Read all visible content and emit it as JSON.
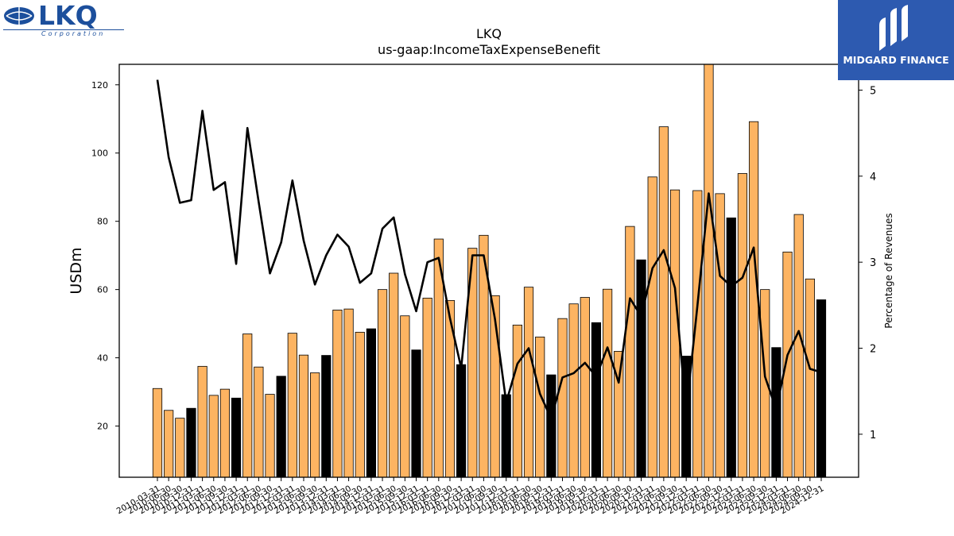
{
  "logos": {
    "left": {
      "name": "LKQ",
      "subtitle": "Corporation"
    },
    "right": {
      "name": "MIDGARD FINANCE"
    }
  },
  "chart_data": {
    "type": "bar",
    "title": "LKQ",
    "subtitle": "us-gaap:IncomeTaxExpenseBenefit",
    "ylabel": "USDm",
    "y2label": "Percentage of Revenues",
    "ylim": [
      5,
      126
    ],
    "y2lim": [
      0.5,
      5.3
    ],
    "yticks": [
      20,
      40,
      60,
      80,
      100,
      120
    ],
    "y2ticks": [
      1,
      2,
      3,
      4,
      5
    ],
    "colors": {
      "bar": "#fdb462",
      "bar_q4": "#000000",
      "line": "#000000"
    },
    "categories": [
      "2010-03-31",
      "2010-06-30",
      "2010-09-30",
      "2010-12-31",
      "2011-03-31",
      "2011-06-30",
      "2011-09-30",
      "2011-12-31",
      "2012-03-31",
      "2012-06-30",
      "2012-09-30",
      "2012-12-31",
      "2013-03-31",
      "2013-06-30",
      "2013-09-30",
      "2013-12-31",
      "2014-03-31",
      "2014-06-30",
      "2014-09-30",
      "2014-12-31",
      "2015-03-31",
      "2015-06-30",
      "2015-09-30",
      "2015-12-31",
      "2016-03-31",
      "2016-06-30",
      "2016-09-30",
      "2016-12-31",
      "2017-03-31",
      "2017-06-30",
      "2017-09-30",
      "2017-12-31",
      "2018-03-31",
      "2018-06-30",
      "2018-09-30",
      "2018-12-31",
      "2019-03-31",
      "2019-06-30",
      "2019-09-30",
      "2019-12-31",
      "2020-03-31",
      "2020-06-30",
      "2020-09-30",
      "2020-12-31",
      "2021-03-31",
      "2021-06-30",
      "2021-09-30",
      "2021-12-31",
      "2022-03-31",
      "2022-06-30",
      "2022-09-30",
      "2022-12-31",
      "2023-03-31",
      "2023-06-30",
      "2023-09-30",
      "2023-12-31",
      "2024-03-31",
      "2024-06-30",
      "2024-09-30",
      "2024-12-31"
    ],
    "series": [
      {
        "type": "bar",
        "values": [
          31,
          24.6,
          22.3,
          25.2,
          37.5,
          29,
          30.8,
          28.2,
          47,
          37.3,
          29.3,
          34.6,
          47.2,
          40.8,
          35.6,
          40.7,
          54,
          54.3,
          47.5,
          48.5,
          60,
          64.8,
          52.3,
          42.3,
          57.5,
          74.8,
          56.8,
          38,
          72.1,
          75.9,
          58.2,
          29.2,
          49.6,
          60.7,
          46.1,
          35,
          51.5,
          55.8,
          57.7,
          50.3,
          60.1,
          41.9,
          78.5,
          68.7,
          93,
          107.7,
          89.2,
          40.5,
          89,
          126.5,
          88.1,
          81,
          94,
          109.2,
          60,
          43,
          71,
          82,
          63.1,
          57
        ]
      },
      {
        "type": "line",
        "axis": "right",
        "values": [
          5.12,
          4.22,
          3.69,
          3.72,
          4.76,
          3.84,
          3.93,
          2.98,
          4.56,
          3.7,
          2.87,
          3.23,
          3.95,
          3.25,
          2.74,
          3.08,
          3.32,
          3.18,
          2.76,
          2.87,
          3.39,
          3.52,
          2.86,
          2.43,
          3.0,
          3.05,
          2.35,
          1.77,
          3.08,
          3.08,
          2.34,
          1.37,
          1.82,
          2.0,
          1.47,
          1.18,
          1.66,
          1.71,
          1.83,
          1.67,
          2.01,
          1.6,
          2.58,
          2.37,
          2.93,
          3.14,
          2.7,
          1.26,
          2.5,
          3.8,
          2.84,
          2.72,
          2.82,
          3.17,
          1.67,
          1.29,
          1.92,
          2.2,
          1.76,
          1.72
        ]
      }
    ]
  }
}
